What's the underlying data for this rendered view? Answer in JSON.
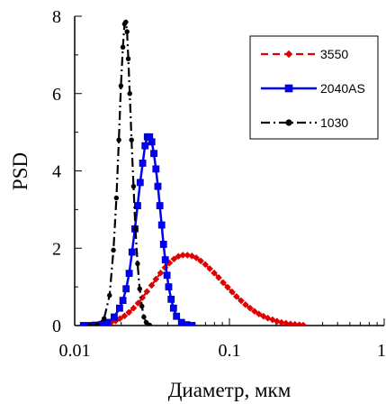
{
  "chart_data": {
    "type": "line",
    "xlabel": "Диаметр, мкм",
    "ylabel": "PSD",
    "x_scale": "log",
    "xlim": [
      0.01,
      1
    ],
    "ylim": [
      0,
      8
    ],
    "x_ticks": [
      {
        "value": 0.01,
        "label": "0.01"
      },
      {
        "value": 0.1,
        "label": "0.1"
      },
      {
        "value": 1,
        "label": "1"
      }
    ],
    "y_ticks": [
      {
        "value": 0,
        "label": "0"
      },
      {
        "value": 2,
        "label": "2"
      },
      {
        "value": 4,
        "label": "4"
      },
      {
        "value": 6,
        "label": "6"
      },
      {
        "value": 8,
        "label": "8"
      }
    ],
    "grid": false,
    "legend_position": "top-right",
    "series": [
      {
        "name": "3550",
        "color": "#e00000",
        "line": "dashed",
        "marker": "diamond",
        "x": [
          0.0115,
          0.0123,
          0.0132,
          0.0141,
          0.015,
          0.0161,
          0.0172,
          0.0184,
          0.0196,
          0.021,
          0.0224,
          0.024,
          0.0257,
          0.0274,
          0.0293,
          0.0314,
          0.0335,
          0.0359,
          0.0383,
          0.041,
          0.0438,
          0.0468,
          0.05,
          0.0535,
          0.0572,
          0.0611,
          0.0653,
          0.0698,
          0.0746,
          0.0797,
          0.0852,
          0.0911,
          0.0974,
          0.104,
          0.111,
          0.119,
          0.127,
          0.136,
          0.145,
          0.155,
          0.166,
          0.177,
          0.19,
          0.203,
          0.217,
          0.232,
          0.248,
          0.265,
          0.283,
          0.3
        ],
        "y": [
          0.0,
          0.0,
          0.01,
          0.02,
          0.03,
          0.05,
          0.08,
          0.12,
          0.18,
          0.25,
          0.34,
          0.45,
          0.58,
          0.72,
          0.88,
          1.04,
          1.2,
          1.36,
          1.5,
          1.62,
          1.72,
          1.79,
          1.82,
          1.82,
          1.8,
          1.75,
          1.67,
          1.58,
          1.47,
          1.36,
          1.24,
          1.11,
          0.99,
          0.87,
          0.75,
          0.64,
          0.54,
          0.45,
          0.37,
          0.3,
          0.24,
          0.19,
          0.15,
          0.11,
          0.08,
          0.06,
          0.04,
          0.03,
          0.02,
          0.01
        ]
      },
      {
        "name": "2040AS",
        "color": "#0000ff",
        "line": "solid",
        "marker": "square",
        "x": [
          0.0114,
          0.0125,
          0.0136,
          0.015,
          0.0163,
          0.018,
          0.0195,
          0.0205,
          0.0215,
          0.0225,
          0.0235,
          0.0245,
          0.0255,
          0.0265,
          0.0275,
          0.0285,
          0.0295,
          0.0305,
          0.0315,
          0.0325,
          0.0335,
          0.0345,
          0.0355,
          0.0365,
          0.0375,
          0.0385,
          0.0395,
          0.0405,
          0.042,
          0.0435,
          0.0455,
          0.049,
          0.053,
          0.057
        ],
        "y": [
          0.0,
          0.0,
          0.01,
          0.03,
          0.08,
          0.22,
          0.45,
          0.65,
          0.95,
          1.35,
          1.9,
          2.5,
          3.1,
          3.7,
          4.2,
          4.65,
          4.88,
          4.88,
          4.75,
          4.45,
          4.05,
          3.6,
          3.1,
          2.6,
          2.1,
          1.7,
          1.3,
          1.0,
          0.68,
          0.45,
          0.24,
          0.08,
          0.02,
          0.0
        ]
      },
      {
        "name": "1030",
        "color": "#000000",
        "line": "dashdot",
        "marker": "circle",
        "x": [
          0.0125,
          0.014,
          0.0155,
          0.0168,
          0.0178,
          0.0186,
          0.0193,
          0.0199,
          0.0205,
          0.021,
          0.0214,
          0.0218,
          0.0222,
          0.0227,
          0.0233,
          0.024,
          0.0247,
          0.0255,
          0.0263,
          0.0272,
          0.028,
          0.029,
          0.0305
        ],
        "y": [
          0.0,
          0.02,
          0.18,
          0.78,
          1.95,
          3.3,
          4.8,
          6.2,
          7.2,
          7.8,
          7.85,
          7.6,
          6.9,
          6.0,
          4.8,
          3.6,
          2.5,
          1.6,
          0.95,
          0.5,
          0.22,
          0.08,
          0.01
        ]
      }
    ]
  }
}
